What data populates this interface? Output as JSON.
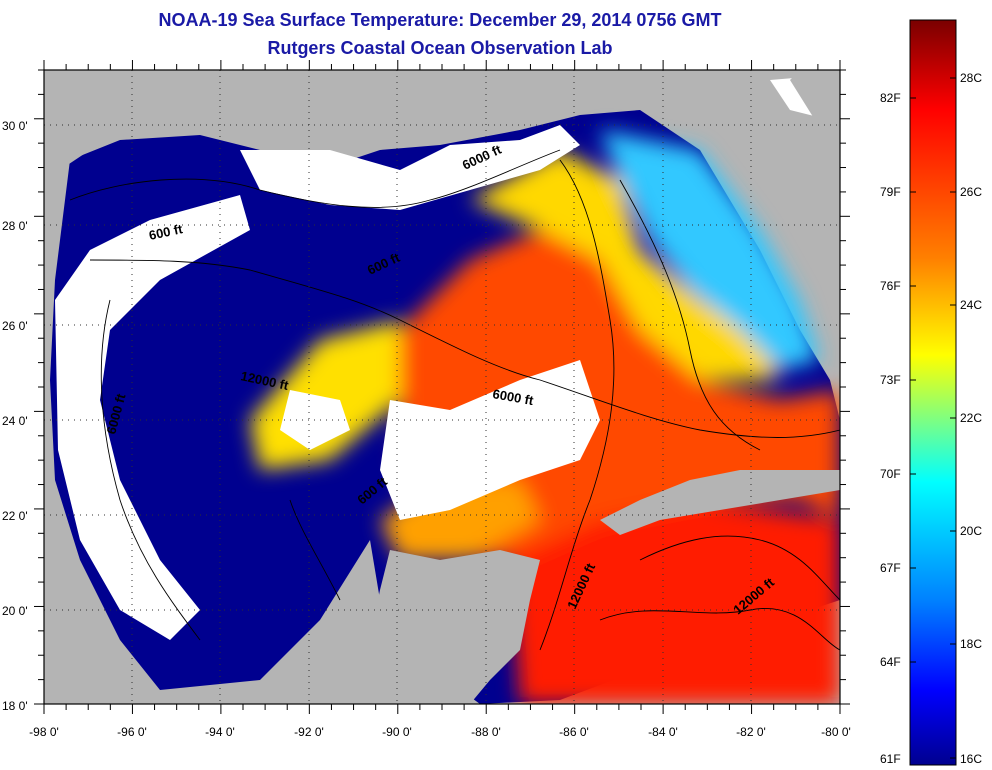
{
  "title_line1": "NOAA-19 Sea Surface Temperature:  December 29, 2014 0756 GMT",
  "title_line2": "Rutgers Coastal Ocean Observation Lab",
  "map": {
    "lon_range": [
      -98,
      -80
    ],
    "lat_range": [
      18,
      31
    ],
    "lon_ticks": [
      "-98 0'",
      "-96 0'",
      "-94 0'",
      "-92 0'",
      "-90 0'",
      "-88 0'",
      "-86 0'",
      "-84 0'",
      "-82 0'",
      "-80 0'"
    ],
    "lat_ticks": [
      "18 0'",
      "20 0'",
      "22 0'",
      "24 0'",
      "26 0'",
      "28 0'",
      "30 0'"
    ],
    "grid": "dotted",
    "colors": {
      "land": "#b4b4b4",
      "cloud": "#ffffff",
      "cold": "#00008f"
    }
  },
  "contour_labels": [
    "600 ft",
    "6000 ft",
    "12000 ft",
    "600 ft",
    "6000 ft",
    "600 ft",
    "6000 ft",
    "12000 ft",
    "12000 ft",
    "600 ft"
  ],
  "colorbar": {
    "celsius": [
      "28C",
      "26C",
      "24C",
      "22C",
      "20C",
      "18C",
      "16C"
    ],
    "fahrenheit": [
      "82F",
      "79F",
      "76F",
      "73F",
      "70F",
      "67F",
      "64F",
      "61F"
    ],
    "gradient": [
      "#800000",
      "#ff0000",
      "#ff8000",
      "#ffff00",
      "#00ffff",
      "#0080ff",
      "#0000ff",
      "#00008f"
    ]
  }
}
